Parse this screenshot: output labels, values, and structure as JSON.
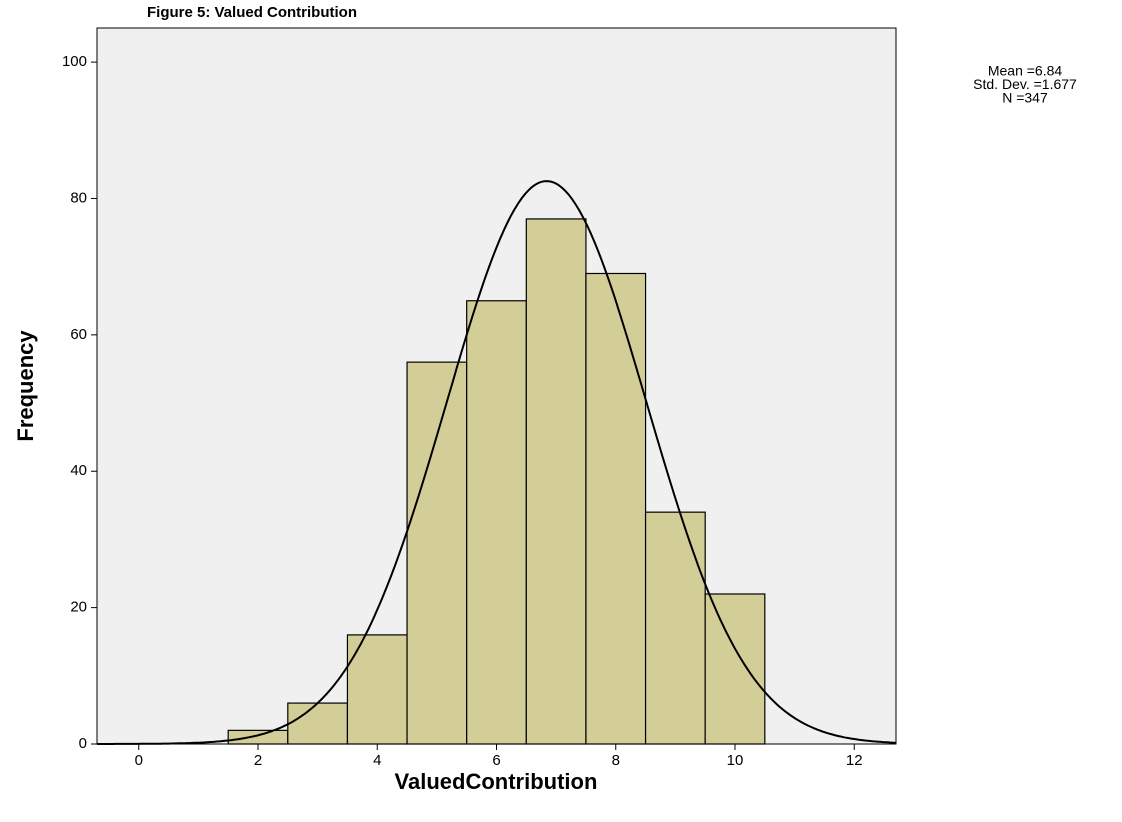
{
  "chart_data": {
    "type": "histogram",
    "title": "Figure 5: Valued Contribution",
    "x_label": "ValuedContribution",
    "y_label": "Frequency",
    "bins": [
      1.5,
      2.5,
      3.5,
      4.5,
      5.5,
      6.5,
      7.5,
      8.5,
      9.5,
      10.5
    ],
    "values": [
      2,
      6,
      16,
      56,
      65,
      77,
      69,
      34,
      22
    ],
    "color": "#d3ce97",
    "edge_color": "#000000",
    "background": "#f0f0f0",
    "xlim": [
      -0.7,
      12.7
    ],
    "xticks": [
      0,
      2,
      4,
      6,
      8,
      10,
      12
    ],
    "ylim": [
      0,
      105
    ],
    "yticks": [
      0,
      20,
      40,
      60,
      80,
      100
    ],
    "grid": false,
    "curve": {
      "type": "normal",
      "mean": 6.84,
      "std": 1.677,
      "n": 347,
      "color": "#000000"
    },
    "annotations": [
      "Mean =6.84",
      "Std. Dev. =1.677",
      "N =347"
    ]
  }
}
